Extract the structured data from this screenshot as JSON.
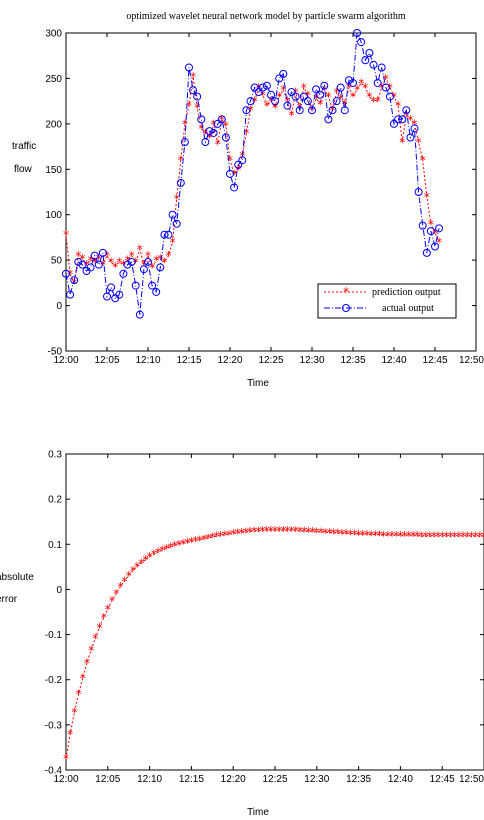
{
  "chart_data": [
    {
      "type": "line",
      "title": "optimized wavelet neural network model by particle swarm algorithm",
      "xlabel": "Time",
      "ylabel_lines": [
        "traffic",
        "flow"
      ],
      "x_tick_labels": [
        "12:00",
        "12:05",
        "12:10",
        "12:15",
        "12:20",
        "12:25",
        "12:30",
        "12:35",
        "12:40",
        "12:45",
        "12:50"
      ],
      "xlim": [
        0,
        50
      ],
      "ylim": [
        -50,
        300
      ],
      "y_ticks": [
        -50,
        0,
        50,
        100,
        150,
        200,
        250,
        300
      ],
      "grid": false,
      "legend_position": "bottom-right",
      "series": [
        {
          "name": "prediction output",
          "color": "#ff0000",
          "marker": "star",
          "style": "dotted",
          "x": [
            0,
            0.5,
            1,
            1.5,
            2,
            2.5,
            3,
            3.5,
            4,
            4.5,
            5,
            5.5,
            6,
            6.5,
            7,
            7.5,
            8,
            8.5,
            9,
            9.5,
            10,
            10.5,
            11,
            11.5,
            12,
            12.5,
            13,
            13.5,
            14,
            14.5,
            15,
            15.5,
            16,
            16.5,
            17,
            17.5,
            18,
            18.5,
            19,
            19.5,
            20,
            20.5,
            21,
            21.5,
            22,
            22.5,
            23,
            23.5,
            24,
            24.5,
            25,
            25.5,
            26,
            26.5,
            27,
            27.5,
            28,
            28.5,
            29,
            29.5,
            30,
            30.5,
            31,
            31.5,
            32,
            32.5,
            33,
            33.5,
            34,
            34.5,
            35,
            35.5,
            36,
            36.5,
            37,
            37.5,
            38,
            38.5,
            39,
            39.5,
            40,
            40.5,
            41,
            41.5,
            42,
            42.5,
            43,
            43.5,
            44,
            44.5,
            45,
            45.5
          ],
          "y": [
            78,
            35,
            25,
            55,
            52,
            45,
            50,
            48,
            52,
            45,
            55,
            48,
            43,
            48,
            45,
            50,
            55,
            48,
            62,
            45,
            55,
            42,
            50,
            52,
            48,
            55,
            70,
            118,
            160,
            200,
            220,
            252,
            218,
            195,
            190,
            185,
            200,
            178,
            205,
            198,
            160,
            145,
            150,
            165,
            190,
            215,
            225,
            240,
            232,
            220,
            225,
            218,
            230,
            238,
            225,
            210,
            235,
            218,
            240,
            232,
            215,
            228,
            222,
            238,
            230,
            215,
            235,
            228,
            222,
            240,
            230,
            238,
            245,
            240,
            230,
            225,
            225,
            240,
            250,
            240,
            230,
            220,
            180,
            210,
            205,
            200,
            180,
            160,
            120,
            90,
            80,
            70
          ]
        },
        {
          "name": "actual output",
          "color": "#0000ff",
          "marker": "circle",
          "style": "dashdot",
          "x": [
            0,
            0.5,
            1,
            1.5,
            2,
            2.5,
            3,
            3.5,
            4,
            4.5,
            5,
            5.5,
            6,
            6.5,
            7,
            7.5,
            8,
            8.5,
            9,
            9.5,
            10,
            10.5,
            11,
            11.5,
            12,
            12.5,
            13,
            13.5,
            14,
            14.5,
            15,
            15.5,
            16,
            16.5,
            17,
            17.5,
            18,
            18.5,
            19,
            19.5,
            20,
            20.5,
            21,
            21.5,
            22,
            22.5,
            23,
            23.5,
            24,
            24.5,
            25,
            25.5,
            26,
            26.5,
            27,
            27.5,
            28,
            28.5,
            29,
            29.5,
            30,
            30.5,
            31,
            31.5,
            32,
            32.5,
            33,
            33.5,
            34,
            34.5,
            35,
            35.5,
            36,
            36.5,
            37,
            37.5,
            38,
            38.5,
            39,
            39.5,
            40,
            40.5,
            41,
            41.5,
            42,
            42.5,
            43,
            43.5,
            44,
            44.5,
            45,
            45.5
          ],
          "y": [
            35,
            12,
            28,
            48,
            45,
            38,
            42,
            55,
            45,
            58,
            10,
            20,
            8,
            12,
            35,
            45,
            48,
            22,
            -10,
            40,
            48,
            22,
            15,
            42,
            78,
            78,
            100,
            90,
            135,
            180,
            262,
            237,
            230,
            205,
            180,
            192,
            190,
            200,
            205,
            185,
            145,
            130,
            155,
            160,
            215,
            225,
            240,
            235,
            240,
            242,
            232,
            225,
            250,
            255,
            220,
            235,
            230,
            215,
            230,
            225,
            215,
            238,
            232,
            242,
            205,
            215,
            225,
            240,
            215,
            248,
            245,
            300,
            290,
            270,
            278,
            265,
            245,
            262,
            240,
            230,
            200,
            205,
            205,
            215,
            185,
            195,
            125,
            88,
            58,
            82,
            65,
            85
          ]
        }
      ]
    },
    {
      "type": "line",
      "title": "",
      "xlabel": "Time",
      "ylabel_lines": [
        "absolute",
        "error"
      ],
      "x_tick_labels": [
        "12:00",
        "12:05",
        "12:10",
        "12:15",
        "12:20",
        "12:25",
        "12:30",
        "12:35",
        "12:40",
        "12:45",
        "12:50"
      ],
      "xlim": [
        0,
        50
      ],
      "ylim": [
        -0.4,
        0.3
      ],
      "y_ticks": [
        -0.4,
        -0.3,
        -0.2,
        -0.1,
        0,
        0.1,
        0.2,
        0.3
      ],
      "grid": false,
      "series": [
        {
          "name": "",
          "color": "#ff0000",
          "marker": "star",
          "style": "dotted",
          "x": [
            0,
            0.5,
            1,
            1.5,
            2,
            2.5,
            3,
            3.5,
            4,
            4.5,
            5,
            5.5,
            6,
            6.5,
            7,
            7.5,
            8,
            8.5,
            9,
            9.5,
            10,
            10.5,
            11,
            11.5,
            12,
            12.5,
            13,
            13.5,
            14,
            14.5,
            15,
            15.5,
            16,
            16.5,
            17,
            17.5,
            18,
            18.5,
            19,
            19.5,
            20,
            20.5,
            21,
            21.5,
            22,
            22.5,
            23,
            23.5,
            24,
            24.5,
            25,
            25.5,
            26,
            26.5,
            27,
            27.5,
            28,
            28.5,
            29,
            29.5,
            30,
            30.5,
            31,
            31.5,
            32,
            32.5,
            33,
            33.5,
            34,
            34.5,
            35,
            35.5,
            36,
            36.5,
            37,
            37.5,
            38,
            38.5,
            39,
            39.5,
            40,
            40.5,
            41,
            41.5,
            42,
            42.5,
            43,
            43.5,
            44,
            44.5,
            45,
            45.5,
            46,
            46.5,
            47,
            47.5,
            48,
            48.5,
            49,
            49.5,
            50
          ],
          "y": [
            -0.375,
            -0.32,
            -0.272,
            -0.232,
            -0.196,
            -0.163,
            -0.134,
            -0.108,
            -0.084,
            -0.062,
            -0.043,
            -0.025,
            -0.009,
            0.006,
            0.019,
            0.031,
            0.042,
            0.051,
            0.059,
            0.066,
            0.073,
            0.078,
            0.083,
            0.087,
            0.091,
            0.094,
            0.097,
            0.1,
            0.102,
            0.104,
            0.106,
            0.108,
            0.11,
            0.112,
            0.114,
            0.116,
            0.118,
            0.119,
            0.121,
            0.122,
            0.124,
            0.125,
            0.126,
            0.127,
            0.128,
            0.129,
            0.129,
            0.13,
            0.13,
            0.13,
            0.13,
            0.13,
            0.13,
            0.13,
            0.13,
            0.13,
            0.129,
            0.129,
            0.128,
            0.128,
            0.127,
            0.127,
            0.126,
            0.126,
            0.125,
            0.125,
            0.124,
            0.124,
            0.123,
            0.123,
            0.122,
            0.122,
            0.122,
            0.121,
            0.121,
            0.121,
            0.12,
            0.12,
            0.12,
            0.12,
            0.119,
            0.119,
            0.119,
            0.119,
            0.119,
            0.118,
            0.118,
            0.118,
            0.118,
            0.118,
            0.118,
            0.118,
            0.118,
            0.118,
            0.118,
            0.118,
            0.118,
            0.118,
            0.118,
            0.118,
            0.118
          ]
        }
      ]
    }
  ]
}
